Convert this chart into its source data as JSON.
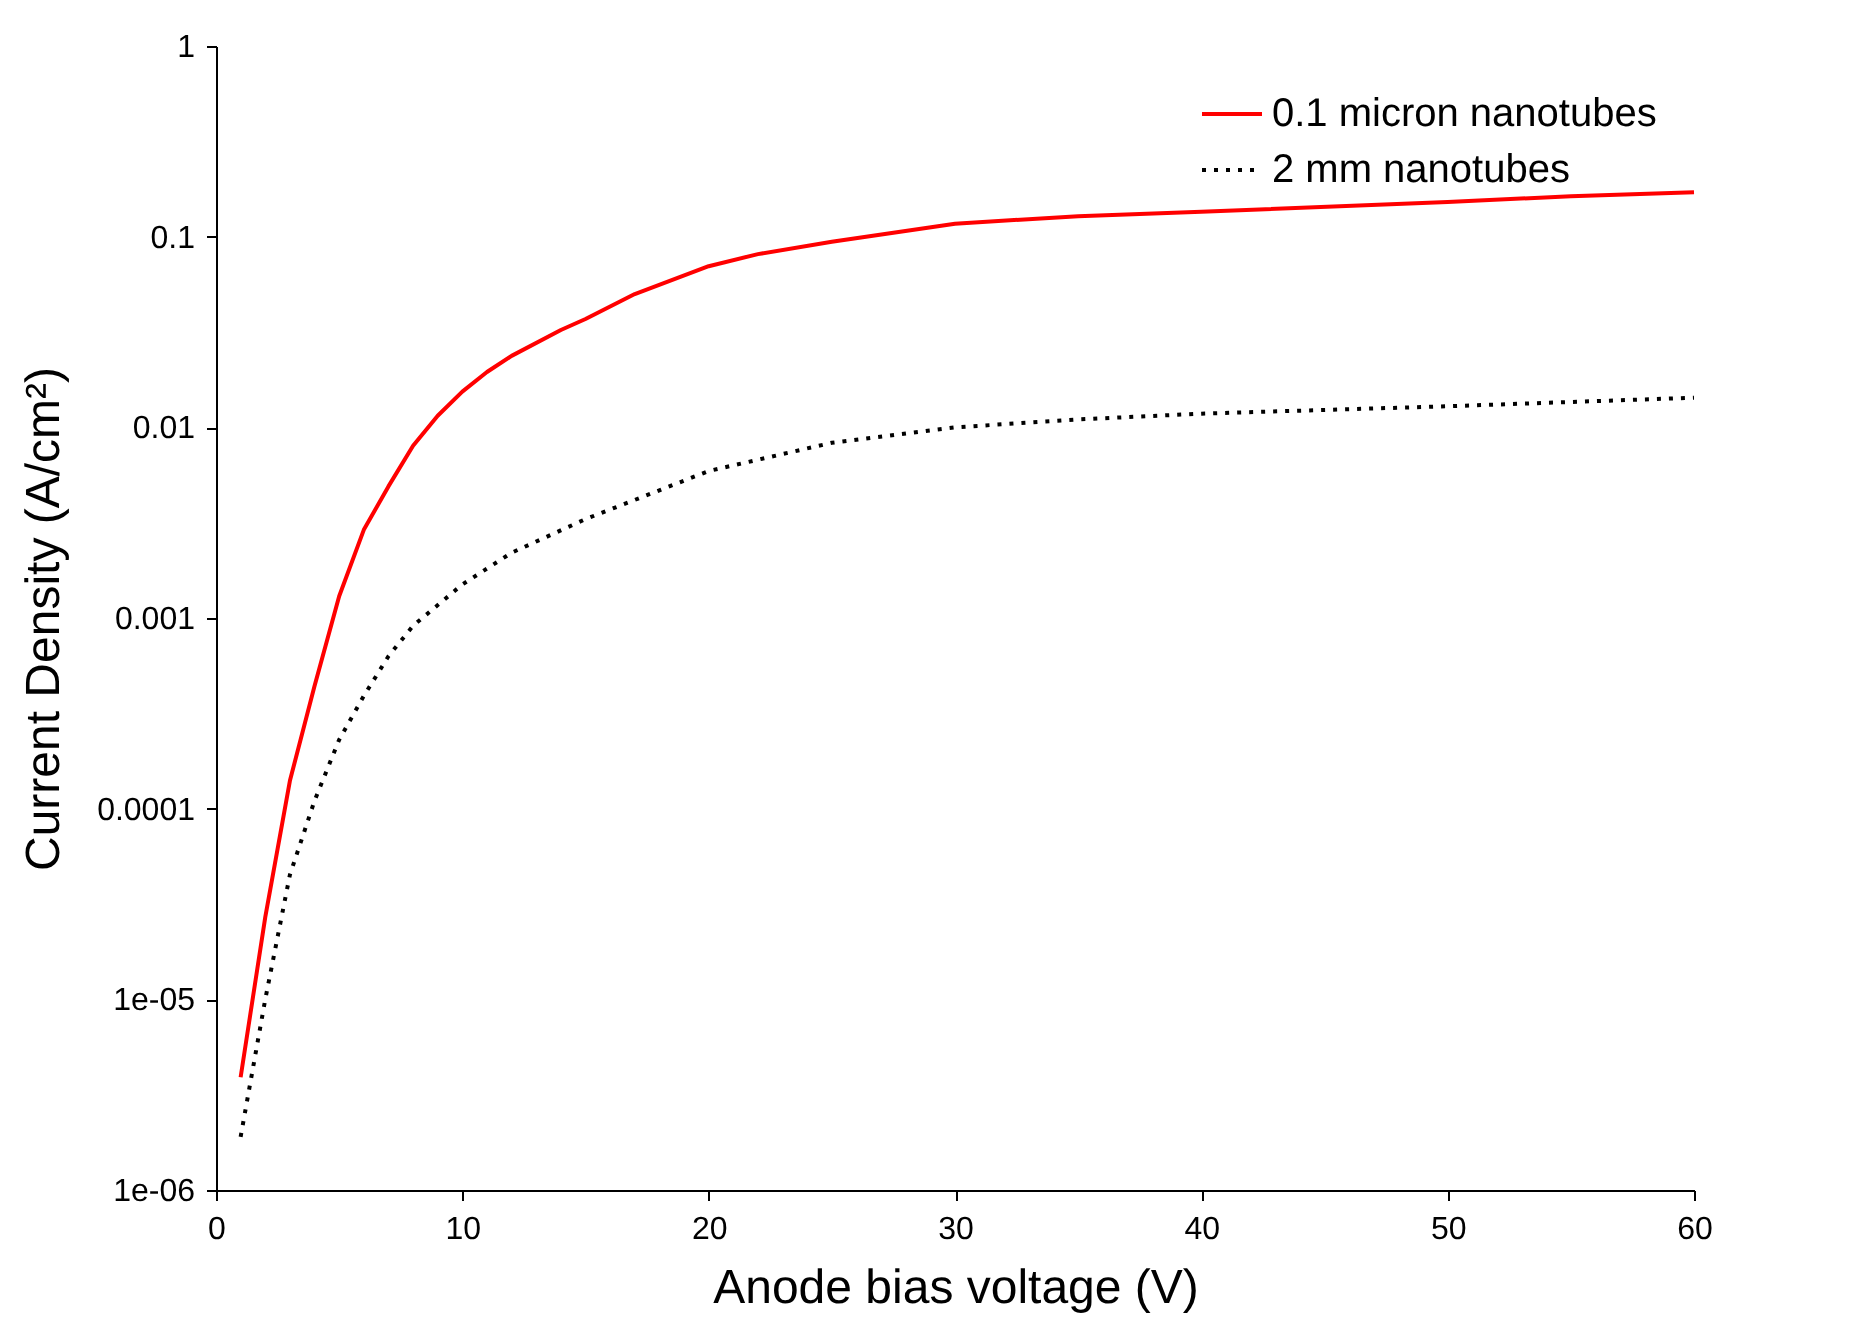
{
  "chart_data": {
    "type": "line",
    "xlabel": "Anode bias voltage (V)",
    "ylabel": "Current Density (A/cm²)",
    "log": "y",
    "xlim": [
      0,
      60
    ],
    "xticks": [
      0,
      10,
      20,
      30,
      40,
      50,
      60
    ],
    "ylim": [
      1e-06,
      1
    ],
    "yticks": [
      {
        "value": 1e-06,
        "label": "1e-06"
      },
      {
        "value": 1e-05,
        "label": "1e-05"
      },
      0.0001,
      0.001,
      0.01,
      0.1,
      1
    ],
    "legend": "top right",
    "grid": false,
    "marker": "none",
    "series": [
      {
        "name": "0.1 micron nanotubes",
        "color": "#ff0000",
        "line_style": "solid",
        "x": [
          1,
          2,
          3,
          4,
          5,
          6,
          7,
          8,
          9,
          10,
          11,
          12,
          14,
          15,
          17,
          20,
          22,
          25,
          30,
          35,
          40,
          50,
          55,
          60
        ],
        "values": [
          3.9e-06,
          2.7e-05,
          0.00014,
          0.00044,
          0.0013,
          0.0029,
          0.0049,
          0.008,
          0.0115,
          0.0154,
          0.0195,
          0.0237,
          0.0324,
          0.037,
          0.05,
          0.07,
          0.081,
          0.094,
          0.117,
          0.128,
          0.135,
          0.152,
          0.163,
          0.171
        ]
      },
      {
        "name": "2 mm nanotubes",
        "color": "#000000",
        "line_style": "dotted",
        "x": [
          1,
          2,
          3,
          4,
          5,
          6,
          7,
          8,
          10,
          12,
          15,
          20,
          25,
          30,
          35,
          40,
          50,
          60
        ],
        "values": [
          1.9e-06,
          1e-05,
          4.5e-05,
          0.00011,
          0.00023,
          0.00039,
          0.00063,
          0.00091,
          0.0015,
          0.0022,
          0.0033,
          0.0059,
          0.0083,
          0.01,
          0.011,
          0.0118,
          0.0129,
          0.0143
        ]
      }
    ]
  }
}
